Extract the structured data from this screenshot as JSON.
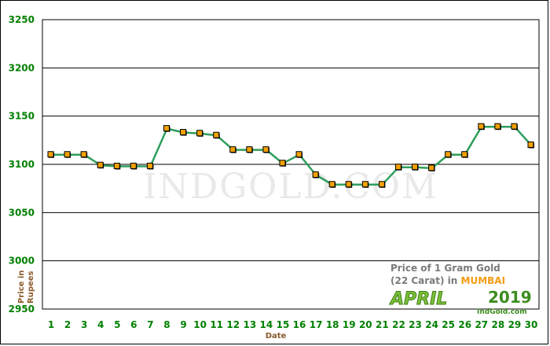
{
  "chart_data": {
    "type": "line",
    "ylabel": "Price in Rupees",
    "xlabel": "Date",
    "ylim": [
      2950,
      3250
    ],
    "yticks": [
      2950,
      3000,
      3050,
      3100,
      3150,
      3200,
      3250
    ],
    "x": [
      1,
      2,
      3,
      4,
      5,
      6,
      7,
      8,
      9,
      10,
      11,
      12,
      13,
      14,
      15,
      16,
      17,
      18,
      19,
      20,
      21,
      22,
      23,
      24,
      25,
      26,
      27,
      28,
      29,
      30
    ],
    "values": [
      3110,
      3110,
      3110,
      3099,
      3098,
      3098,
      3098,
      3137,
      3133,
      3132,
      3130,
      3115,
      3115,
      3115,
      3101,
      3110,
      3089,
      3079,
      3079,
      3079,
      3079,
      3097,
      3097,
      3096,
      3110,
      3110,
      3139,
      3139,
      3139,
      3120
    ],
    "grid": "horizontal",
    "colors": {
      "line": "#2e9e5b",
      "marker": "#f0a000",
      "marker_edge": "#000000",
      "grid": "#000000",
      "ticks": "#008000"
    }
  },
  "watermark": "INDGOLD.COM",
  "caption": {
    "line1": "Price of 1 Gram Gold",
    "line2_prefix": "(22 Carat) in ",
    "city": "MUMBAI",
    "month": "APRIL",
    "year": "2019",
    "site": "IndGold.com"
  }
}
